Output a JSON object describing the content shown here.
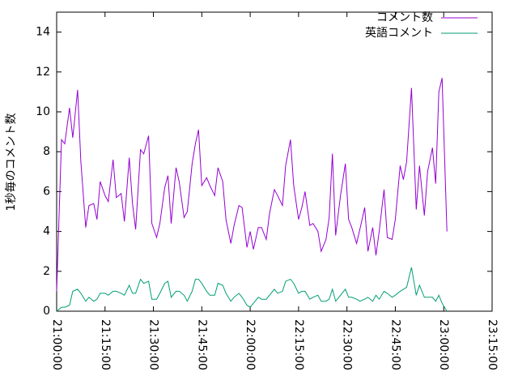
{
  "chart_data": {
    "type": "line",
    "ylabel": "1秒毎のコメント数",
    "x": [
      "21:00:00",
      "21:01:30",
      "21:02:30",
      "21:04:00",
      "21:05:00",
      "21:06:30",
      "21:07:30",
      "21:09:00",
      "21:10:00",
      "21:11:30",
      "21:12:30",
      "21:13:30",
      "21:15:00",
      "21:16:00",
      "21:17:30",
      "21:18:30",
      "21:20:00",
      "21:21:00",
      "21:22:30",
      "21:23:30",
      "21:24:30",
      "21:26:00",
      "21:27:00",
      "21:28:30",
      "21:29:30",
      "21:31:00",
      "21:32:00",
      "21:33:30",
      "21:34:30",
      "21:35:30",
      "21:37:00",
      "21:38:00",
      "21:39:30",
      "21:40:30",
      "21:42:00",
      "21:43:00",
      "21:44:00",
      "21:45:00",
      "21:46:30",
      "21:47:30",
      "21:49:00",
      "21:50:00",
      "21:51:30",
      "21:52:30",
      "21:54:00",
      "21:55:00",
      "21:56:30",
      "21:57:30",
      "21:59:00",
      "22:00:00",
      "22:01:00",
      "22:02:30",
      "22:03:30",
      "22:05:00",
      "22:06:00",
      "22:07:30",
      "22:08:30",
      "22:10:00",
      "22:11:00",
      "22:12:30",
      "22:13:30",
      "22:15:00",
      "22:16:00",
      "22:17:00",
      "22:18:30",
      "22:19:30",
      "22:21:00",
      "22:22:00",
      "22:23:30",
      "22:24:30",
      "22:25:30",
      "22:26:30",
      "22:28:00",
      "22:29:30",
      "22:30:30",
      "22:31:30",
      "22:33:00",
      "22:34:00",
      "22:35:30",
      "22:36:30",
      "22:38:00",
      "22:39:00",
      "22:40:00",
      "22:41:30",
      "22:42:30",
      "22:44:00",
      "22:45:00",
      "22:46:30",
      "22:47:30",
      "22:48:30",
      "22:50:00",
      "22:51:30",
      "22:52:30",
      "22:54:00",
      "22:55:00",
      "22:56:30",
      "22:57:30",
      "22:58:30",
      "22:59:30",
      "23:01:00"
    ],
    "series": [
      {
        "name": "コメント数",
        "color": "#9400d3",
        "values": [
          1,
          8.6,
          8.4,
          10.2,
          8.7,
          11.1,
          7.5,
          4.2,
          5.3,
          5.4,
          4.6,
          6.5,
          5.8,
          5.5,
          7.6,
          5.7,
          5.9,
          4.5,
          7.7,
          5.4,
          4.1,
          8.1,
          7.9,
          8.8,
          4.4,
          3.7,
          4.4,
          6.2,
          6.8,
          4.4,
          7.2,
          6.5,
          4.7,
          5.0,
          7.4,
          8.4,
          9.1,
          6.3,
          6.7,
          6.3,
          5.8,
          7.2,
          6.5,
          4.6,
          3.4,
          4.3,
          5.3,
          5.2,
          3.2,
          4.0,
          3.1,
          4.2,
          4.2,
          3.6,
          4.9,
          6.1,
          5.8,
          5.3,
          7.3,
          8.6,
          6.3,
          4.6,
          5.2,
          6.0,
          4.3,
          4.4,
          4.0,
          3.0,
          3.6,
          4.7,
          7.9,
          3.8,
          5.8,
          7.4,
          4.6,
          4.2,
          3.4,
          4.1,
          5.2,
          3.0,
          4.2,
          2.8,
          4.0,
          6.1,
          3.7,
          3.6,
          4.6,
          7.3,
          6.6,
          7.5,
          11.2,
          5.1,
          7.3,
          4.8,
          7.0,
          8.2,
          6.4,
          11.0,
          11.7,
          4.0
        ]
      },
      {
        "name": "英語コメント",
        "color": "#009e73",
        "values": [
          0,
          0.2,
          0.2,
          0.3,
          1.0,
          1.1,
          0.9,
          0.5,
          0.7,
          0.5,
          0.6,
          0.9,
          0.9,
          0.8,
          1.0,
          1.0,
          0.9,
          0.8,
          1.3,
          0.9,
          0.9,
          1.6,
          1.4,
          1.5,
          0.6,
          0.6,
          0.9,
          1.4,
          1.5,
          0.7,
          1.0,
          1.0,
          0.8,
          0.5,
          1.0,
          1.6,
          1.6,
          1.4,
          1.0,
          0.8,
          0.8,
          1.4,
          1.3,
          0.9,
          0.5,
          0.7,
          0.9,
          0.7,
          0.3,
          0.2,
          0.4,
          0.7,
          0.6,
          0.6,
          0.8,
          1.1,
          0.9,
          1.0,
          1.5,
          1.6,
          1.4,
          0.9,
          1.0,
          1.0,
          0.6,
          0.7,
          0.8,
          0.5,
          0.5,
          0.6,
          1.1,
          0.5,
          0.8,
          1.1,
          0.7,
          0.7,
          0.6,
          0.5,
          0.6,
          0.7,
          0.5,
          0.8,
          0.6,
          1.0,
          0.9,
          0.7,
          0.8,
          1.0,
          1.1,
          1.2,
          2.2,
          0.8,
          1.3,
          0.7,
          0.7,
          0.7,
          0.5,
          0.8,
          0.4,
          0
        ]
      }
    ],
    "xlim": [
      "21:00:00",
      "23:15:00"
    ],
    "xticks": [
      "21:00:00",
      "21:15:00",
      "21:30:00",
      "21:45:00",
      "22:00:00",
      "22:15:00",
      "22:30:00",
      "22:45:00",
      "23:00:00",
      "23:15:00"
    ],
    "ylim": [
      0,
      15
    ],
    "yticks": [
      0,
      2,
      4,
      6,
      8,
      10,
      12,
      14
    ],
    "legend": "top-right"
  }
}
